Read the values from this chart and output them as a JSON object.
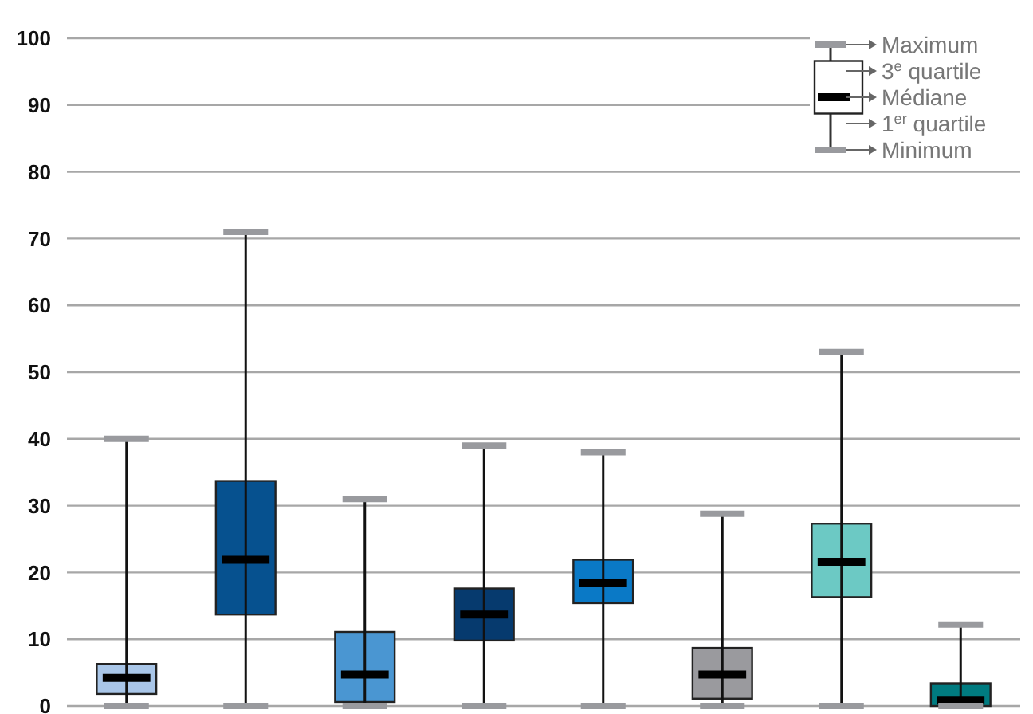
{
  "chart_data": {
    "type": "box",
    "categories": [
      null,
      null,
      null,
      null,
      null,
      null,
      null,
      null
    ],
    "boxes": [
      {
        "low": 0,
        "q1": 1.8,
        "median": 4.2,
        "q3": 6.3,
        "high": 40
      },
      {
        "low": 0,
        "q1": 13.7,
        "median": 21.9,
        "q3": 33.7,
        "high": 71
      },
      {
        "low": 0,
        "q1": 0.6,
        "median": 4.7,
        "q3": 11.1,
        "high": 31
      },
      {
        "low": 0,
        "q1": 9.8,
        "median": 13.7,
        "q3": 17.6,
        "high": 39
      },
      {
        "low": 0,
        "q1": 15.4,
        "median": 18.5,
        "q3": 21.9,
        "high": 38
      },
      {
        "low": 0,
        "q1": 1.1,
        "median": 4.7,
        "q3": 8.7,
        "high": 28.8
      },
      {
        "low": 0,
        "q1": 16.3,
        "median": 21.6,
        "q3": 27.3,
        "high": 53
      },
      {
        "low": 0,
        "q1": 0,
        "median": 0.8,
        "q3": 3.4,
        "high": 12.2
      }
    ],
    "colors": [
      "#a9c6e8",
      "#06518f",
      "#4a96d2",
      "#063a6e",
      "#0a79c6",
      "#9a9a9e",
      "#6cc9c4",
      "#007b80"
    ],
    "ylim": [
      0,
      100
    ],
    "yticks": [
      0,
      10,
      20,
      30,
      40,
      50,
      60,
      70,
      80,
      90,
      100
    ],
    "grid": "y",
    "tick_labels": "y",
    "annotations": [
      "Maximum",
      "3$^{e}$ quartile",
      "Médiane",
      "1$^{er}$ quartile",
      "Minimum"
    ]
  }
}
